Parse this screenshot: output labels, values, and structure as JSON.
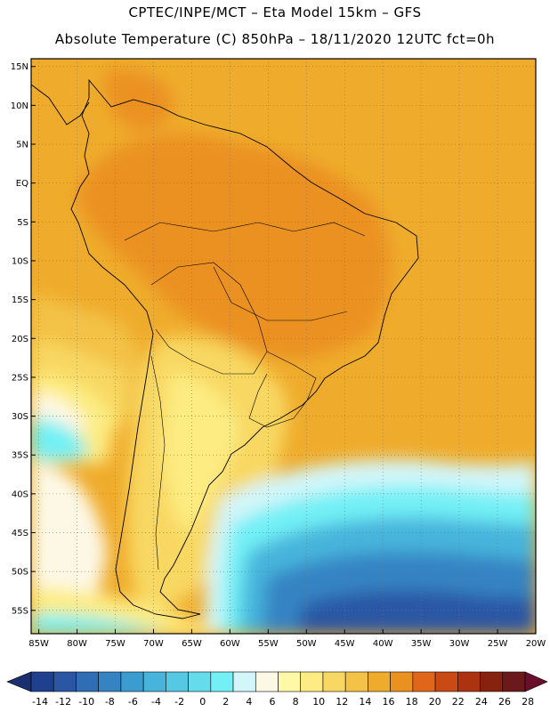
{
  "header": {
    "line1": "CPTEC/INPE/MCT –  Eta Model 15km – GFS",
    "line2": "Absolute Temperature (C) 850hPa – 18/11/2020 12UTC fct=0h"
  },
  "map": {
    "lat_labels": [
      "15N",
      "10N",
      "5N",
      "EQ",
      "5S",
      "10S",
      "15S",
      "20S",
      "25S",
      "30S",
      "35S",
      "40S",
      "45S",
      "50S",
      "55S"
    ],
    "lon_labels": [
      "85W",
      "80W",
      "75W",
      "70W",
      "65W",
      "60W",
      "55W",
      "50W",
      "45W",
      "40W",
      "35W",
      "30W",
      "25W",
      "20W"
    ],
    "lat_range": [
      -58,
      16
    ],
    "lon_range": [
      -86,
      -20
    ]
  },
  "colorbar": {
    "labels": [
      "-14",
      "-12",
      "-10",
      "-8",
      "-6",
      "-4",
      "-2",
      "0",
      "2",
      "4",
      "6",
      "8",
      "10",
      "12",
      "14",
      "16",
      "18",
      "20",
      "22",
      "24",
      "26",
      "28"
    ],
    "colors": [
      "#1f3f8f",
      "#2a56a4",
      "#2f6db5",
      "#3583c3",
      "#3b9ccf",
      "#46b4db",
      "#55c8e3",
      "#64dcec",
      "#72f0f5",
      "#d2f6fa",
      "#fdf8e6",
      "#fff8a6",
      "#fdec82",
      "#f8d862",
      "#f3c247",
      "#efac2c",
      "#eb9120",
      "#e0661a",
      "#c94a14",
      "#ac3210",
      "#86220e",
      "#6a1a1a"
    ]
  },
  "chart_data": {
    "type": "heatmap",
    "title": "Absolute Temperature (C) 850hPa – 18/11/2020 12UTC fct=0h",
    "xlabel": "",
    "ylabel": "",
    "xlim": [
      -86,
      -20
    ],
    "ylim": [
      -58,
      16
    ],
    "legend": "bottom",
    "colorbar_ticks": [
      -14,
      -12,
      -10,
      -8,
      -6,
      -4,
      -2,
      0,
      2,
      4,
      6,
      8,
      10,
      12,
      14,
      16,
      18,
      20,
      22,
      24,
      26,
      28
    ]
  }
}
